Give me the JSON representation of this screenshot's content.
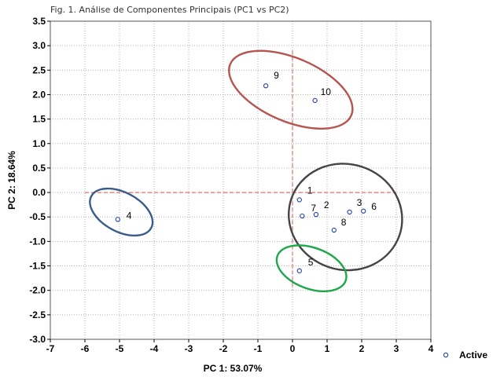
{
  "figure": {
    "title": "Fig. 1. Análise de Componentes Principais (PC1 vs PC2)"
  },
  "chart_data": {
    "type": "scatter",
    "title": "Fig. 1. Análise de Componentes Principais (PC1 vs PC2)",
    "xlabel": "PC 1: 53.07%",
    "ylabel": "PC 2: 18.64%",
    "xlim": [
      -7,
      4
    ],
    "ylim": [
      -3,
      3.5
    ],
    "x_ticks": [
      -7,
      -6,
      -5,
      -4,
      -3,
      -2,
      -1,
      0,
      1,
      2,
      3,
      4
    ],
    "y_ticks": [
      3.5,
      3.0,
      2.5,
      2.0,
      1.5,
      1.0,
      0.5,
      0.0,
      -0.5,
      -1.0,
      -1.5,
      -2.0,
      -2.5,
      -3.0
    ],
    "x_tick_labels": [
      "-7",
      "-6",
      "-5",
      "-4",
      "-3",
      "-2",
      "-1",
      "0",
      "1",
      "2",
      "3",
      "4"
    ],
    "y_tick_labels": [
      "3.5",
      "3.0",
      "2.5",
      "2.0",
      "1.5",
      "1.0",
      "0.5",
      "0.0",
      "-0.5",
      "-1.0",
      "-1.5",
      "-2.0",
      "-2.5",
      "-3.0"
    ],
    "grid": true,
    "reference_lines": {
      "x": 0,
      "y": 0,
      "color": "#d9534f",
      "style": "dashed"
    },
    "series": [
      {
        "name": "Active",
        "marker": "open-circle",
        "color": "#1f3fa6",
        "points": [
          {
            "label": "1",
            "x": 0.2,
            "y": -0.15
          },
          {
            "label": "2",
            "x": 0.68,
            "y": -0.45
          },
          {
            "label": "3",
            "x": 1.65,
            "y": -0.4
          },
          {
            "label": "4",
            "x": -5.05,
            "y": -0.55
          },
          {
            "label": "5",
            "x": 0.2,
            "y": -1.6
          },
          {
            "label": "6",
            "x": 2.05,
            "y": -0.38
          },
          {
            "label": "7",
            "x": 0.28,
            "y": -0.48
          },
          {
            "label": "8",
            "x": 1.2,
            "y": -0.77
          },
          {
            "label": "9",
            "x": -0.77,
            "y": 2.18
          },
          {
            "label": "10",
            "x": 0.65,
            "y": 1.88
          }
        ]
      }
    ],
    "ellipses": [
      {
        "group": [
          "9",
          "10"
        ],
        "color": "#b85450",
        "cx": -0.05,
        "cy": 2.1,
        "rx": 1.9,
        "ry": 0.65,
        "angle_deg": 23
      },
      {
        "group": [
          "1",
          "2",
          "3",
          "6",
          "7",
          "8"
        ],
        "color": "#444444",
        "cx": 1.53,
        "cy": -0.5,
        "rx": 1.65,
        "ry": 1.08,
        "angle_deg": 18
      },
      {
        "group": [
          "4"
        ],
        "color": "#3a5a8c",
        "cx": -4.95,
        "cy": -0.4,
        "rx": 0.98,
        "ry": 0.4,
        "angle_deg": 28
      },
      {
        "group": [
          "5"
        ],
        "color": "#1fa84a",
        "cx": 0.55,
        "cy": -1.55,
        "rx": 1.05,
        "ry": 0.42,
        "angle_deg": 20
      }
    ],
    "legend": {
      "placement": "bottom-right",
      "entries": [
        "Active"
      ]
    }
  }
}
